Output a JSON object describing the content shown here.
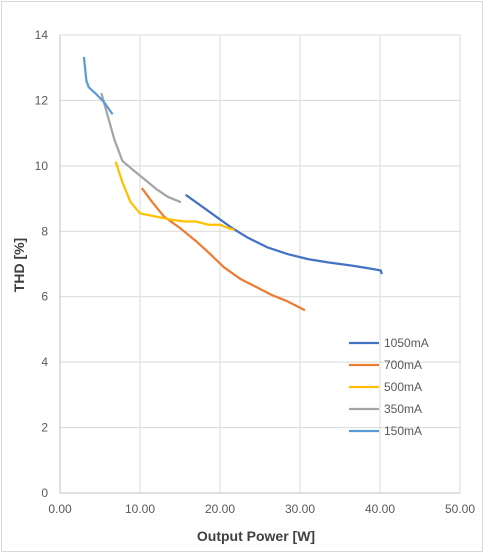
{
  "chart_data": {
    "type": "line",
    "title": "",
    "xlabel": "Output Power [W]",
    "ylabel": "THD [%]",
    "xlim": [
      0,
      50
    ],
    "ylim": [
      0,
      14
    ],
    "x_ticks": [
      0,
      10,
      20,
      30,
      40,
      50
    ],
    "x_tick_labels": [
      "0.00",
      "10.00",
      "20.00",
      "30.00",
      "40.00",
      "50.00"
    ],
    "y_ticks": [
      0,
      2,
      4,
      6,
      8,
      10,
      12,
      14
    ],
    "y_tick_labels": [
      "0",
      "2",
      "4",
      "6",
      "8",
      "10",
      "12",
      "14"
    ],
    "grid": true,
    "legend_position": "bottom-right",
    "series": [
      {
        "name": "1050mA",
        "color": "#4472c4",
        "points": [
          [
            15.8,
            9.1
          ],
          [
            17.5,
            8.8
          ],
          [
            19.5,
            8.45
          ],
          [
            21.5,
            8.1
          ],
          [
            23.5,
            7.8
          ],
          [
            26,
            7.5
          ],
          [
            28.5,
            7.3
          ],
          [
            31,
            7.15
          ],
          [
            33.5,
            7.05
          ],
          [
            36.5,
            6.95
          ],
          [
            39,
            6.85
          ],
          [
            40.1,
            6.8
          ],
          [
            40.2,
            6.72
          ]
        ]
      },
      {
        "name": "700mA",
        "color": "#ed7d31",
        "points": [
          [
            10.3,
            9.3
          ],
          [
            11.5,
            8.9
          ],
          [
            13,
            8.45
          ],
          [
            15,
            8.1
          ],
          [
            17,
            7.7
          ],
          [
            18.8,
            7.3
          ],
          [
            20.5,
            6.9
          ],
          [
            22.5,
            6.55
          ],
          [
            24.5,
            6.3
          ],
          [
            26.5,
            6.05
          ],
          [
            28.5,
            5.85
          ],
          [
            30.5,
            5.6
          ]
        ]
      },
      {
        "name": "500mA",
        "color": "#ffc000",
        "points": [
          [
            7.0,
            10.1
          ],
          [
            7.8,
            9.5
          ],
          [
            8.8,
            8.9
          ],
          [
            10,
            8.55
          ],
          [
            12,
            8.45
          ],
          [
            14,
            8.35
          ],
          [
            15.5,
            8.3
          ],
          [
            17,
            8.3
          ],
          [
            18.5,
            8.2
          ],
          [
            20,
            8.2
          ],
          [
            21,
            8.1
          ],
          [
            21.7,
            8.05
          ]
        ]
      },
      {
        "name": "350mA",
        "color": "#a5a5a5",
        "points": [
          [
            5.2,
            12.2
          ],
          [
            6.0,
            11.5
          ],
          [
            6.8,
            10.8
          ],
          [
            7.8,
            10.15
          ],
          [
            9,
            9.9
          ],
          [
            10.5,
            9.6
          ],
          [
            12,
            9.3
          ],
          [
            13.5,
            9.05
          ],
          [
            15,
            8.9
          ]
        ]
      },
      {
        "name": "150mA",
        "color": "#5b9bd5",
        "points": [
          [
            3.0,
            13.3
          ],
          [
            3.3,
            12.6
          ],
          [
            3.6,
            12.4
          ],
          [
            4.5,
            12.2
          ],
          [
            5.5,
            11.95
          ],
          [
            6.5,
            11.6
          ]
        ]
      }
    ]
  }
}
